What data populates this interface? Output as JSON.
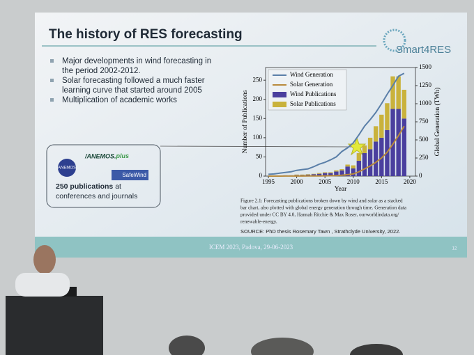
{
  "slide": {
    "title": "The history of RES forecasting",
    "logo": "Smart4RES",
    "bullets": [
      [
        "Major developments in wind forecasting in",
        "the period 2002-2012."
      ],
      [
        "Solar forecasting followed a much faster",
        "learning curve that started around 2005"
      ],
      [
        "Multiplication of academic works"
      ]
    ],
    "box": {
      "logo1": "ANEMOS",
      "logo2": "plus",
      "logo3": "SafeWind",
      "bold": "250 publications",
      "text1": "at",
      "text2": "conferences and journals"
    },
    "caption": [
      "Figure 2.1:  Forecasting publications broken down by wind and solar as a stacked",
      "bar chart, also plotted with global energy generation through time. Generation data",
      "provided under CC BY 4.0, Hannah Ritchie & Max Roser, ourworldindata.org/",
      "renewable-energy."
    ],
    "source": "SOURCE: PhD thesis Rosemary Tawn , Strathclyde University, 2022.",
    "footer": "ICEM 2023, Padova, 29-06-2023",
    "page": "12"
  },
  "chart_data": {
    "type": "bar",
    "xlabel": "Year",
    "ylabel": "Number of Publications",
    "y2label": "Global Generation (TWh)",
    "x": [
      1995,
      1996,
      1997,
      1998,
      1999,
      2000,
      2001,
      2002,
      2003,
      2004,
      2005,
      2006,
      2007,
      2008,
      2009,
      2010,
      2011,
      2012,
      2013,
      2014,
      2015,
      2016,
      2017,
      2018,
      2019
    ],
    "xlim": [
      1994.5,
      2021
    ],
    "xticks": [
      1995,
      2000,
      2005,
      2010,
      2015,
      2020
    ],
    "ylim": [
      0,
      283
    ],
    "yticks": [
      0,
      50,
      100,
      150,
      200,
      250
    ],
    "y2lim": [
      0,
      1500
    ],
    "y2ticks": [
      0,
      250,
      500,
      750,
      1000,
      1250,
      1500
    ],
    "series": [
      {
        "name": "Wind Generation",
        "type": "line",
        "axis": "y2",
        "color": "#5a7fa8",
        "values": [
          25,
          30,
          40,
          50,
          60,
          80,
          90,
          100,
          130,
          165,
          190,
          225,
          265,
          340,
          390,
          460,
          570,
          690,
          780,
          880,
          1000,
          1130,
          1250,
          1380,
          1420
        ]
      },
      {
        "name": "Solar Generation",
        "type": "line",
        "axis": "y2",
        "color": "#b88a3c",
        "values": [
          0,
          0,
          0,
          1,
          1,
          1,
          1,
          2,
          3,
          3,
          4,
          5,
          7,
          12,
          20,
          30,
          60,
          100,
          140,
          190,
          250,
          330,
          440,
          560,
          690
        ]
      },
      {
        "name": "Wind Publications",
        "type": "bar",
        "color": "#4a3f9e",
        "values": [
          0,
          0,
          0,
          2,
          2,
          3,
          3,
          4,
          5,
          6,
          8,
          8,
          12,
          15,
          25,
          20,
          40,
          60,
          70,
          90,
          100,
          120,
          175,
          175,
          150
        ]
      },
      {
        "name": "Solar Publications",
        "type": "bar",
        "color": "#c9b23c",
        "values": [
          0,
          0,
          0,
          0,
          0,
          1,
          1,
          1,
          1,
          2,
          2,
          2,
          3,
          3,
          5,
          8,
          20,
          20,
          30,
          40,
          60,
          70,
          85,
          85,
          75
        ]
      }
    ]
  }
}
